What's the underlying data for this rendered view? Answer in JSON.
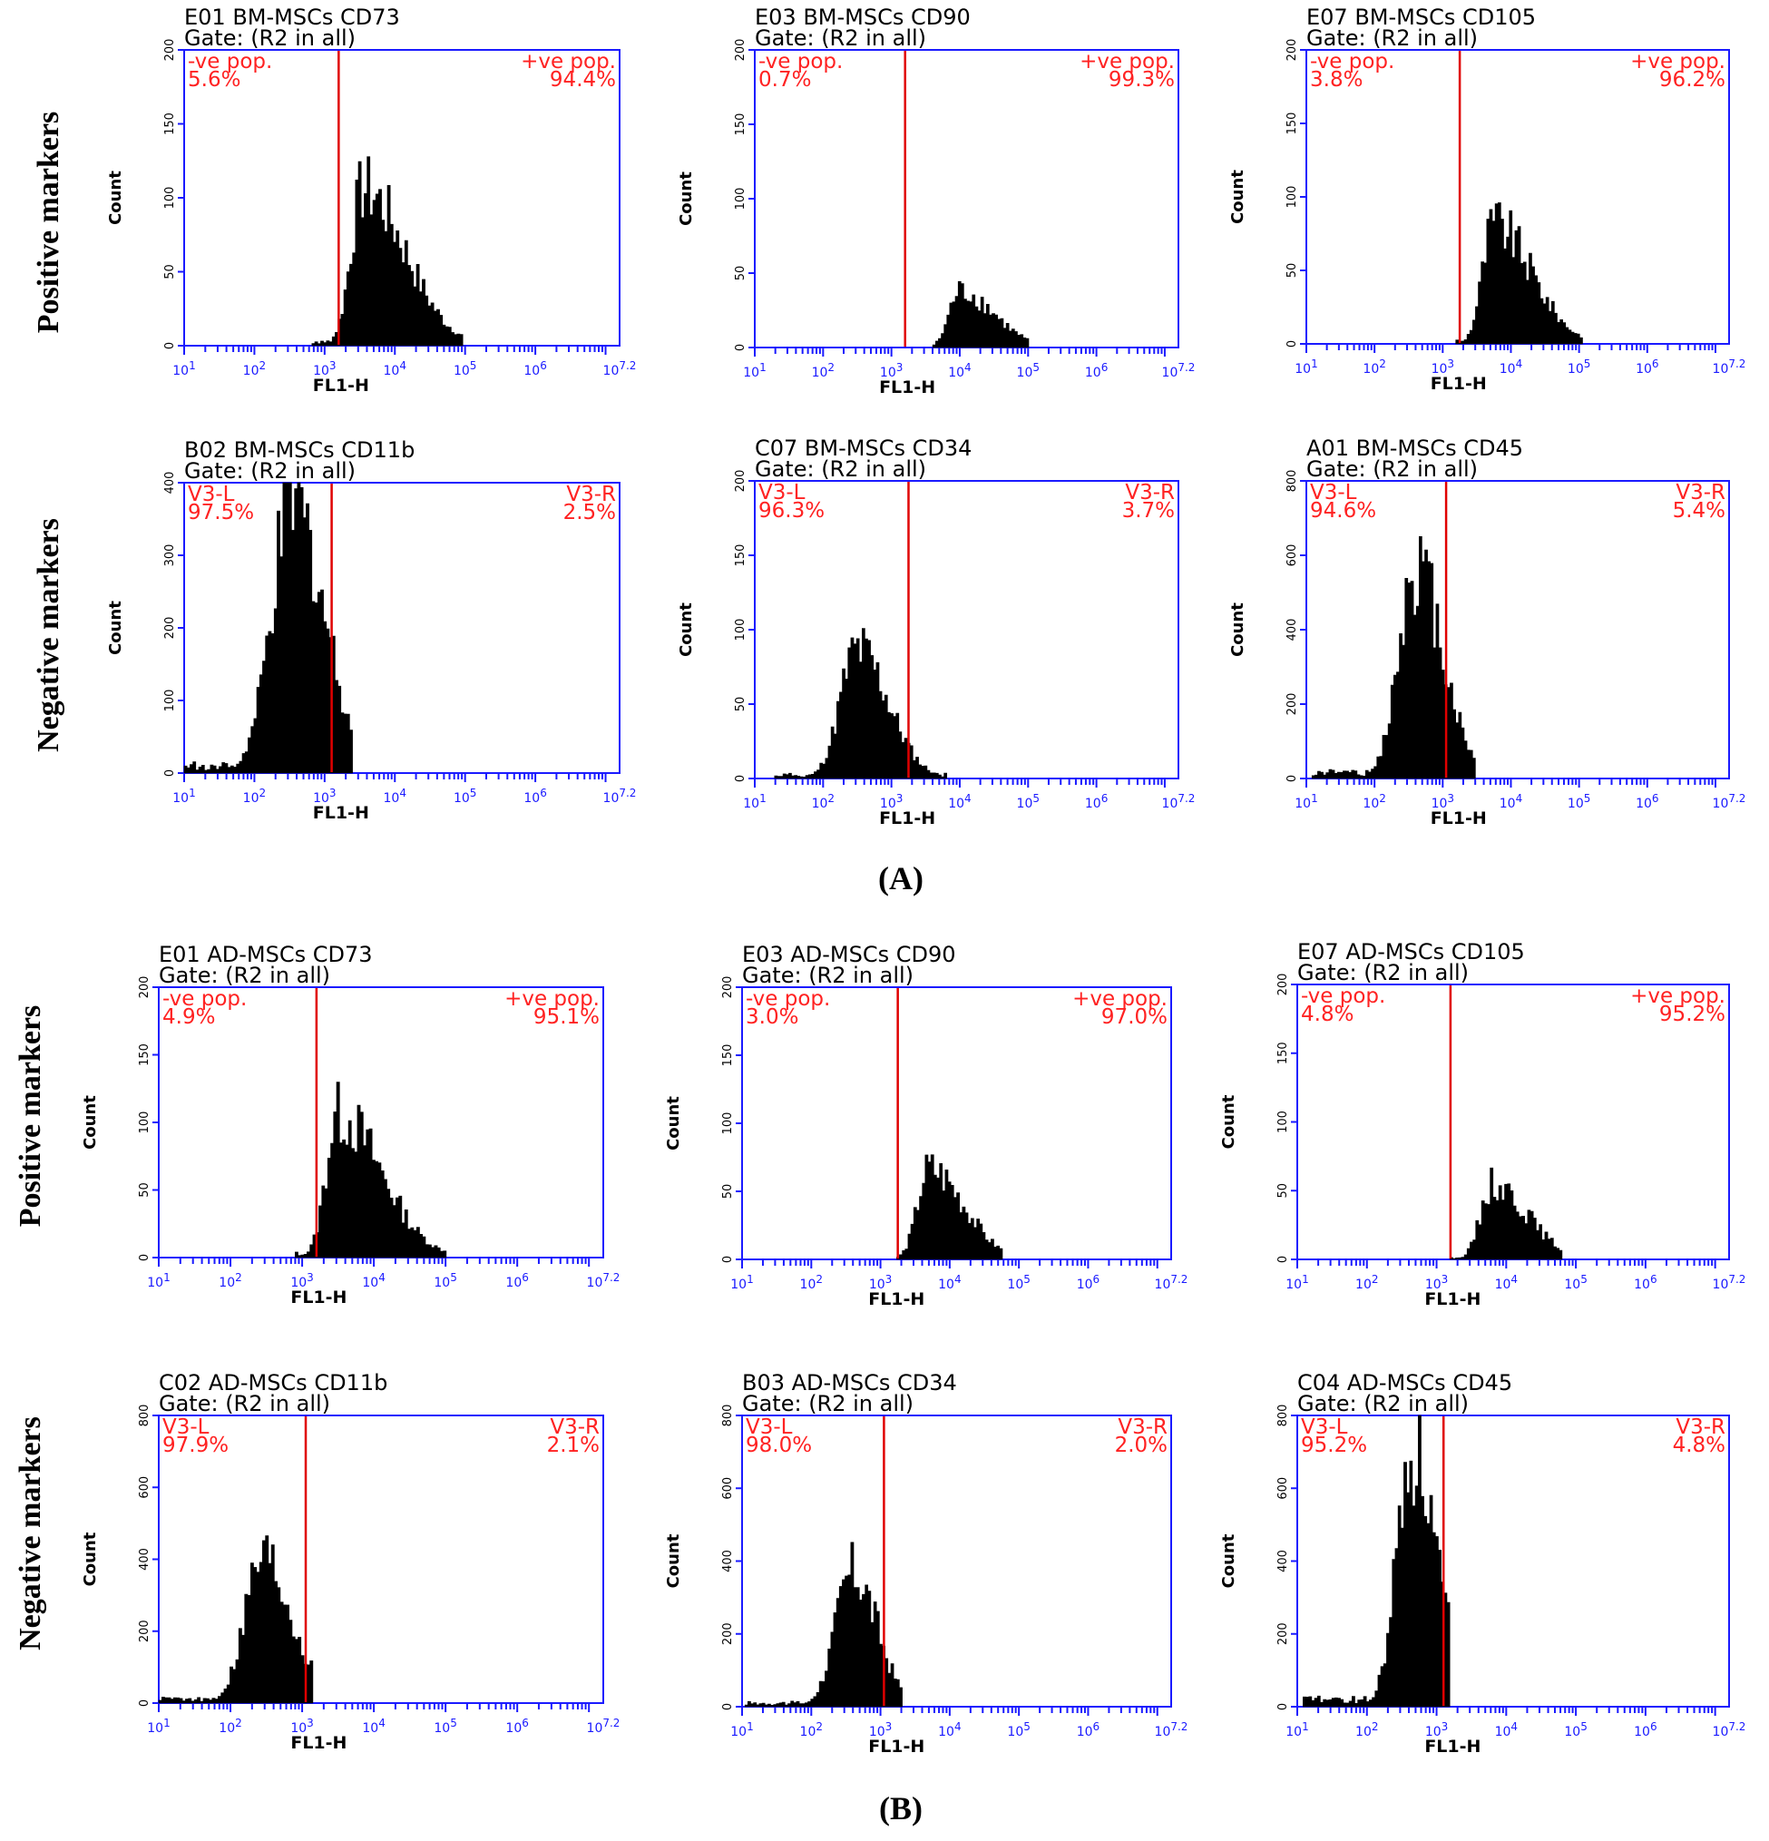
{
  "figure": {
    "sections": [
      {
        "label": "(A)"
      },
      {
        "label": "(B)"
      }
    ],
    "row_labels": {
      "positive": "Positive markers",
      "negative": "Negative markers"
    },
    "x_axis_label": "FL1-H",
    "y_axis_label": "Count",
    "x_tick_labels": [
      "10^1",
      "10^2",
      "10^3",
      "10^4",
      "10^5",
      "10^6",
      "10^7.2"
    ],
    "colors": {
      "axis": "#1a1aff",
      "gate_line": "#e00000",
      "gate_text": "#ff2222",
      "histogram": "#000000"
    }
  },
  "chart_data": [
    {
      "type": "histogram",
      "title": "E01 BM-MSCs  CD73",
      "gate": "Gate: (R2 in all)",
      "xlabel": "FL1-H",
      "ylabel": "Count",
      "x_range_log10": [
        1,
        7.2
      ],
      "ylim": [
        0,
        200
      ],
      "yticks": [
        0,
        50,
        100,
        150,
        200
      ],
      "gate_log10": 3.2,
      "left_name": "-ve pop.",
      "left_value": "5.6%",
      "right_name": "+ve pop.",
      "right_value": "94.4%",
      "peak_log10": 3.55,
      "peak_count": 112,
      "spread": 0.32,
      "tail": 0.6,
      "x_min_log10": 2.8,
      "x_max_log10": 4.95
    },
    {
      "type": "histogram",
      "title": "E03 BM-MSCs CD90",
      "gate": "Gate: (R2 in all)",
      "xlabel": "FL1-H",
      "ylabel": "Count",
      "x_range_log10": [
        1,
        7.2
      ],
      "ylim": [
        0,
        200
      ],
      "yticks": [
        0,
        50,
        100,
        150,
        200
      ],
      "gate_log10": 3.2,
      "left_name": "-ve pop.",
      "left_value": "0.7%",
      "right_name": "+ve pop.",
      "right_value": "99.3%",
      "peak_log10": 4.0,
      "peak_count": 40,
      "spread": 0.28,
      "tail": 0.5,
      "x_min_log10": 3.6,
      "x_max_log10": 5.0
    },
    {
      "type": "histogram",
      "title": "E07 BM-MSCs CD105",
      "gate": "Gate: (R2 in all)",
      "xlabel": "FL1-H",
      "ylabel": "Count",
      "x_range_log10": [
        1,
        7.2
      ],
      "ylim": [
        0,
        200
      ],
      "yticks": [
        0,
        50,
        100,
        150,
        200
      ],
      "gate_log10": 3.25,
      "left_name": "-ve pop.",
      "left_value": "3.8%",
      "right_name": "+ve pop.",
      "right_value": "96.2%",
      "peak_log10": 3.75,
      "peak_count": 86,
      "spread": 0.3,
      "tail": 0.55,
      "x_min_log10": 3.2,
      "x_max_log10": 5.05
    },
    {
      "type": "histogram",
      "title": "B02 BM-MSCs CD11b",
      "gate": "Gate: (R2 in all)",
      "xlabel": "FL1-H",
      "ylabel": "Count",
      "x_range_log10": [
        1,
        7.2
      ],
      "ylim": [
        0,
        400
      ],
      "yticks": [
        0,
        100,
        200,
        300,
        400
      ],
      "gate_log10": 3.1,
      "left_name": "V3-L",
      "left_value": "97.5%",
      "right_name": "V3-R",
      "right_value": "2.5%",
      "peak_log10": 2.55,
      "peak_count": 390,
      "spread": 0.55,
      "tail": 0.45,
      "x_min_log10": 1.0,
      "x_max_log10": 3.4
    },
    {
      "type": "histogram",
      "title": "C07 BM-MSCs CD34",
      "gate": "Gate: (R2 in all)",
      "xlabel": "FL1-H",
      "ylabel": "Count",
      "x_range_log10": [
        1,
        7.2
      ],
      "ylim": [
        0,
        200
      ],
      "yticks": [
        0,
        50,
        100,
        150,
        200
      ],
      "gate_log10": 3.25,
      "left_name": "V3-L",
      "left_value": "96.3%",
      "right_name": "V3-R",
      "right_value": "3.7%",
      "peak_log10": 2.5,
      "peak_count": 92,
      "spread": 0.45,
      "tail": 0.45,
      "x_min_log10": 1.3,
      "x_max_log10": 3.8
    },
    {
      "type": "histogram",
      "title": "A01 BM-MSCs CD45",
      "gate": "Gate: (R2 in all)",
      "xlabel": "FL1-H",
      "ylabel": "Count",
      "x_range_log10": [
        1,
        7.2
      ],
      "ylim": [
        0,
        800
      ],
      "yticks": [
        0,
        200,
        400,
        600,
        800
      ],
      "gate_log10": 3.05,
      "left_name": "V3-L",
      "left_value": "94.6%",
      "right_name": "V3-R",
      "right_value": "5.4%",
      "peak_log10": 2.6,
      "peak_count": 610,
      "spread": 0.45,
      "tail": 0.4,
      "x_min_log10": 1.1,
      "x_max_log10": 3.5
    },
    {
      "type": "histogram",
      "title": "E01 AD-MSCs  CD73",
      "gate": "Gate: (R2 in all)",
      "xlabel": "FL1-H",
      "ylabel": "Count",
      "x_range_log10": [
        1,
        7.2
      ],
      "ylim": [
        0,
        200
      ],
      "yticks": [
        0,
        50,
        100,
        150,
        200
      ],
      "gate_log10": 3.2,
      "left_name": "-ve pop.",
      "left_value": "4.9%",
      "right_name": "+ve pop.",
      "right_value": "95.1%",
      "peak_log10": 3.5,
      "peak_count": 112,
      "spread": 0.3,
      "tail": 0.6,
      "x_min_log10": 2.9,
      "x_max_log10": 5.0
    },
    {
      "type": "histogram",
      "title": "E03 AD-MSCs CD90",
      "gate": "Gate: (R2 in all)",
      "xlabel": "FL1-H",
      "ylabel": "Count",
      "x_range_log10": [
        1,
        7.2
      ],
      "ylim": [
        0,
        200
      ],
      "yticks": [
        0,
        50,
        100,
        150,
        200
      ],
      "gate_log10": 3.25,
      "left_name": "-ve pop.",
      "left_value": "3.0%",
      "right_name": "+ve pop.",
      "right_value": "97.0%",
      "peak_log10": 3.7,
      "peak_count": 70,
      "spread": 0.3,
      "tail": 0.5,
      "x_min_log10": 3.25,
      "x_max_log10": 4.75
    },
    {
      "type": "histogram",
      "title": "E07 AD-MSCs CD105",
      "gate": "Gate: (R2 in all)",
      "xlabel": "FL1-H",
      "ylabel": "Count",
      "x_range_log10": [
        1,
        7.2
      ],
      "ylim": [
        0,
        200
      ],
      "yticks": [
        0,
        50,
        100,
        150,
        200
      ],
      "gate_log10": 3.2,
      "left_name": "-ve pop.",
      "left_value": "4.8%",
      "right_name": "+ve pop.",
      "right_value": "95.2%",
      "peak_log10": 3.8,
      "peak_count": 58,
      "spread": 0.3,
      "tail": 0.5,
      "x_min_log10": 3.2,
      "x_max_log10": 4.8
    },
    {
      "type": "histogram",
      "title": "C02 AD-MSCs CD11b",
      "gate": "Gate: (R2 in all)",
      "xlabel": "FL1-H",
      "ylabel": "Count",
      "x_range_log10": [
        1,
        7.2
      ],
      "ylim": [
        0,
        800
      ],
      "yticks": [
        0,
        200,
        400,
        600,
        800
      ],
      "gate_log10": 3.05,
      "left_name": "V3-L",
      "left_value": "97.9%",
      "right_name": "V3-R",
      "right_value": "2.1%",
      "peak_log10": 2.45,
      "peak_count": 430,
      "spread": 0.45,
      "tail": 0.4,
      "x_min_log10": 1.0,
      "x_max_log10": 3.15
    },
    {
      "type": "histogram",
      "title": "B03 AD-MSCs CD34",
      "gate": "Gate: (R2 in all)",
      "xlabel": "FL1-H",
      "ylabel": "Count",
      "x_range_log10": [
        1,
        7.2
      ],
      "ylim": [
        0,
        800
      ],
      "yticks": [
        0,
        200,
        400,
        600,
        800
      ],
      "gate_log10": 3.05,
      "left_name": "V3-L",
      "left_value": "98.0%",
      "right_name": "V3-R",
      "right_value": "2.0%",
      "peak_log10": 2.6,
      "peak_count": 390,
      "spread": 0.45,
      "tail": 0.35,
      "x_min_log10": 1.05,
      "x_max_log10": 3.3
    },
    {
      "type": "histogram",
      "title": "C04 AD-MSCs CD45",
      "gate": "Gate: (R2 in all)",
      "xlabel": "FL1-H",
      "ylabel": "Count",
      "x_range_log10": [
        1,
        7.2
      ],
      "ylim": [
        0,
        800
      ],
      "yticks": [
        0,
        200,
        400,
        600,
        800
      ],
      "gate_log10": 3.1,
      "left_name": "V3-L",
      "left_value": "95.2%",
      "right_name": "V3-R",
      "right_value": "4.8%",
      "peak_log10": 2.65,
      "peak_count": 750,
      "spread": 0.4,
      "tail": 0.35,
      "x_min_log10": 1.1,
      "x_max_log10": 3.2
    }
  ]
}
